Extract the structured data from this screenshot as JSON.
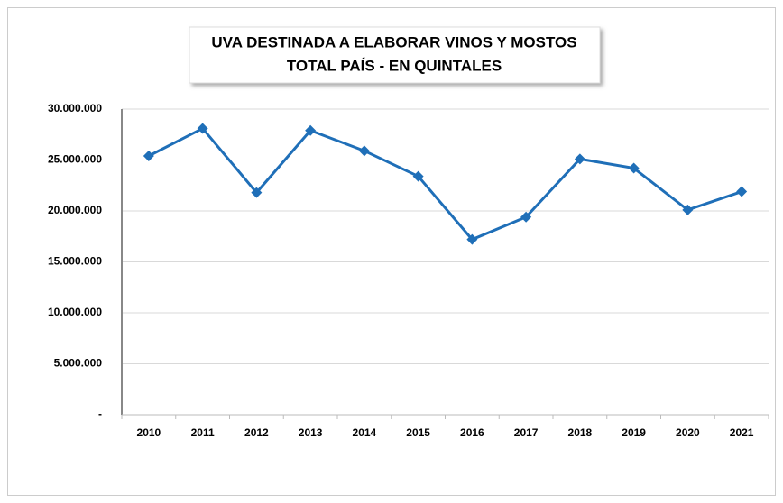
{
  "chart_data": {
    "type": "line",
    "title": "UVA DESTINADA A ELABORAR VINOS Y MOSTOS",
    "subtitle": "TOTAL PAÍS - EN QUINTALES",
    "categories": [
      "2010",
      "2011",
      "2012",
      "2013",
      "2014",
      "2015",
      "2016",
      "2017",
      "2018",
      "2019",
      "2020",
      "2021"
    ],
    "series": [
      {
        "name": "Quintales",
        "color": "#1f6fb8",
        "values": [
          25400000,
          28100000,
          21800000,
          27900000,
          25900000,
          23400000,
          17200000,
          19400000,
          25100000,
          24200000,
          20100000,
          21900000
        ]
      }
    ],
    "ylim": [
      0,
      30000000
    ],
    "yticks": [
      {
        "value": 0,
        "label": "-"
      },
      {
        "value": 5000000,
        "label": "5.000.000"
      },
      {
        "value": 10000000,
        "label": "10.000.000"
      },
      {
        "value": 15000000,
        "label": "15.000.000"
      },
      {
        "value": 20000000,
        "label": "20.000.000"
      },
      {
        "value": 25000000,
        "label": "25.000.000"
      },
      {
        "value": 30000000,
        "label": "30.000.000"
      }
    ],
    "grid": true
  }
}
